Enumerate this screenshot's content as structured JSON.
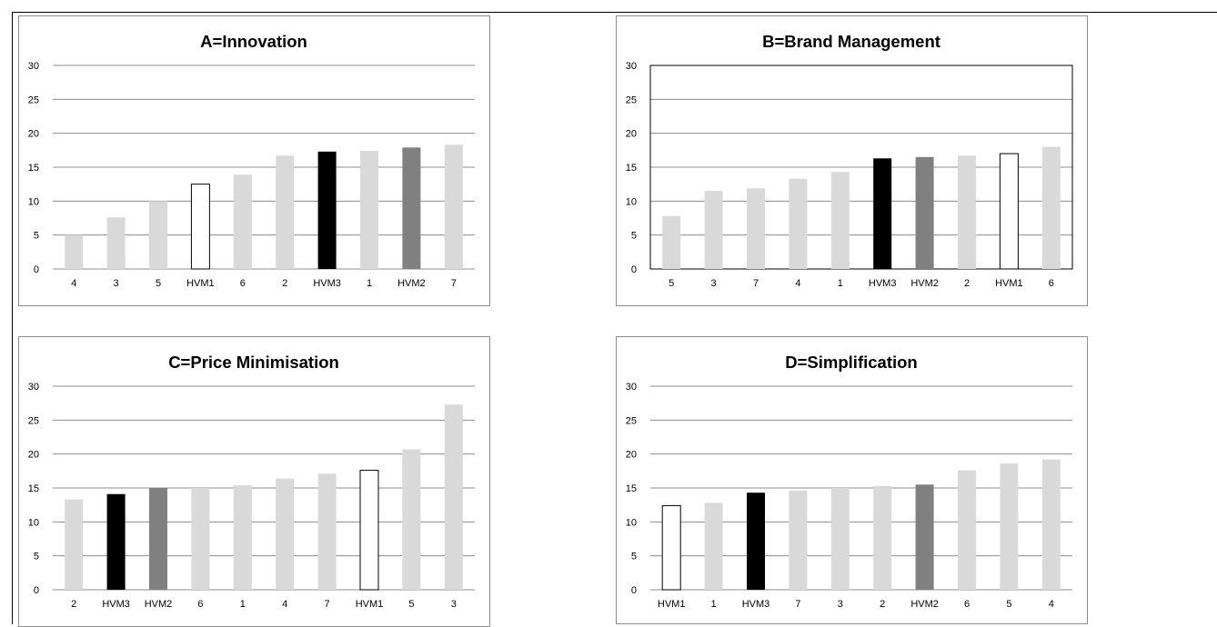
{
  "colors": {
    "light": "#d9d9d9",
    "black": "#000000",
    "grey": "#808080",
    "white": "#ffffff",
    "gridline": "#8c8c8c"
  },
  "chart_data": [
    {
      "id": "A",
      "type": "bar",
      "title": "A=Innovation",
      "categories": [
        "4",
        "3",
        "5",
        "HVM1",
        "6",
        "2",
        "HVM3",
        "1",
        "HVM2",
        "7"
      ],
      "values": [
        5.0,
        7.6,
        10.0,
        12.5,
        13.9,
        16.7,
        17.3,
        17.4,
        17.9,
        18.3
      ],
      "bar_colors": [
        "light",
        "light",
        "light",
        "white",
        "light",
        "light",
        "black",
        "light",
        "grey",
        "light"
      ],
      "ylim": [
        0,
        30
      ],
      "yticks": [
        "0",
        "5",
        "10",
        "15",
        "20",
        "25",
        "30"
      ],
      "xlabel": "",
      "ylabel": "",
      "grid": true,
      "plot_border": false
    },
    {
      "id": "B",
      "type": "bar",
      "title": "B=Brand Management",
      "categories": [
        "5",
        "3",
        "7",
        "4",
        "1",
        "HVM3",
        "HVM2",
        "2",
        "HVM1",
        "6"
      ],
      "values": [
        7.8,
        11.5,
        11.9,
        13.3,
        14.3,
        16.3,
        16.5,
        16.7,
        17.0,
        18.0
      ],
      "bar_colors": [
        "light",
        "light",
        "light",
        "light",
        "light",
        "black",
        "grey",
        "light",
        "white",
        "light"
      ],
      "ylim": [
        0,
        30
      ],
      "yticks": [
        "0",
        "5",
        "10",
        "15",
        "20",
        "25",
        "30"
      ],
      "xlabel": "",
      "ylabel": "",
      "grid": true,
      "plot_border": true
    },
    {
      "id": "C",
      "type": "bar",
      "title": "C=Price Minimisation",
      "categories": [
        "2",
        "HVM3",
        "HVM2",
        "6",
        "1",
        "4",
        "7",
        "HVM1",
        "5",
        "3"
      ],
      "values": [
        13.3,
        14.1,
        15.0,
        15.0,
        15.4,
        16.4,
        17.1,
        17.6,
        20.7,
        27.3
      ],
      "bar_colors": [
        "light",
        "black",
        "grey",
        "light",
        "light",
        "light",
        "light",
        "white",
        "light",
        "light"
      ],
      "ylim": [
        0,
        30
      ],
      "yticks": [
        "0",
        "5",
        "10",
        "15",
        "20",
        "25",
        "30"
      ],
      "xlabel": "",
      "ylabel": "",
      "grid": true,
      "plot_border": false
    },
    {
      "id": "D",
      "type": "bar",
      "title": "D=Simplification",
      "categories": [
        "HVM1",
        "1",
        "HVM3",
        "7",
        "3",
        "2",
        "HVM2",
        "6",
        "5",
        "4"
      ],
      "values": [
        12.4,
        12.8,
        14.3,
        14.6,
        15.0,
        15.3,
        15.5,
        17.6,
        18.6,
        19.2
      ],
      "bar_colors": [
        "white",
        "light",
        "black",
        "light",
        "light",
        "light",
        "grey",
        "light",
        "light",
        "light"
      ],
      "ylim": [
        0,
        30
      ],
      "yticks": [
        "0",
        "5",
        "10",
        "15",
        "20",
        "25",
        "30"
      ],
      "xlabel": "",
      "ylabel": "",
      "grid": true,
      "plot_border": false
    }
  ]
}
